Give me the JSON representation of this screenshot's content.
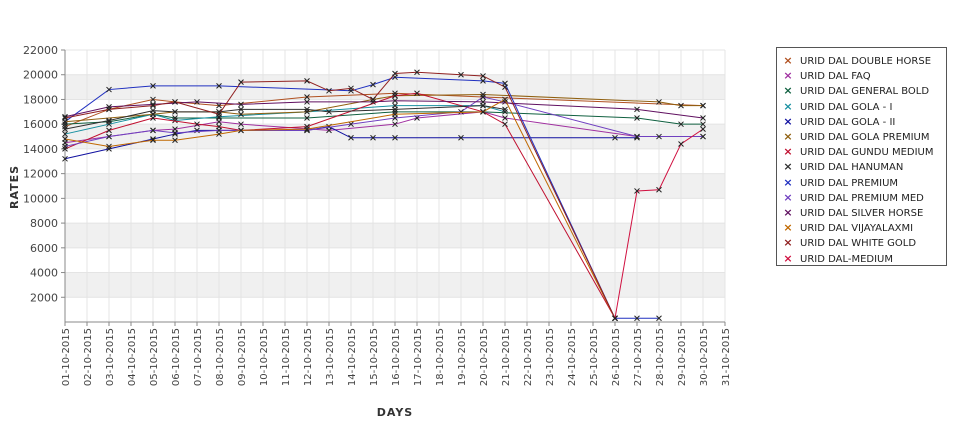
{
  "chart_data": {
    "type": "line",
    "title": "",
    "xlabel": "DAYS",
    "ylabel": "RATES",
    "ylim": [
      0,
      22000
    ],
    "yticks": [
      2000,
      4000,
      6000,
      8000,
      10000,
      12000,
      14000,
      16000,
      18000,
      20000,
      22000
    ],
    "x_ticks": [
      "01-10-2015",
      "02-10-2015",
      "03-10-2015",
      "04-10-2015",
      "05-10-2015",
      "06-10-2015",
      "07-10-2015",
      "08-10-2015",
      "09-10-2015",
      "10-10-2015",
      "11-10-2015",
      "12-10-2015",
      "13-10-2015",
      "14-10-2015",
      "15-10-2015",
      "16-10-2015",
      "17-10-2015",
      "18-10-2015",
      "19-10-2015",
      "20-10-2015",
      "21-10-2015",
      "22-10-2015",
      "23-10-2015",
      "24-10-2015",
      "25-10-2015",
      "26-10-2015",
      "27-10-2015",
      "28-10-2015",
      "29-10-2015",
      "30-10-2015",
      "31-10-2015"
    ],
    "grid": true,
    "legend_position": "right",
    "series": [
      {
        "name": "URID DAL DOUBLE HORSE",
        "color": "#b05020",
        "points": [
          [
            "01-10-2015",
            15800
          ],
          [
            "03-10-2015",
            17200
          ],
          [
            "05-10-2015",
            18000
          ],
          [
            "06-10-2015",
            17800
          ],
          [
            "08-10-2015",
            17500
          ],
          [
            "12-10-2015",
            18200
          ],
          [
            "16-10-2015",
            18500
          ],
          [
            "20-10-2015",
            18200
          ],
          [
            "30-10-2015",
            17500
          ]
        ]
      },
      {
        "name": "URID DAL FAQ",
        "color": "#a030a0",
        "points": [
          [
            "01-10-2015",
            14500
          ],
          [
            "03-10-2015",
            15000
          ],
          [
            "05-10-2015",
            15500
          ],
          [
            "06-10-2015",
            15600
          ],
          [
            "08-10-2015",
            16200
          ],
          [
            "09-10-2015",
            16000
          ],
          [
            "13-10-2015",
            15500
          ],
          [
            "16-10-2015",
            16000
          ],
          [
            "17-10-2015",
            16500
          ],
          [
            "20-10-2015",
            17000
          ],
          [
            "21-10-2015",
            16500
          ],
          [
            "27-10-2015",
            15000
          ],
          [
            "30-10-2015",
            15000
          ]
        ]
      },
      {
        "name": "URID DAL GENERAL BOLD",
        "color": "#106040",
        "points": [
          [
            "01-10-2015",
            16000
          ],
          [
            "03-10-2015",
            16200
          ],
          [
            "05-10-2015",
            16800
          ],
          [
            "06-10-2015",
            16500
          ],
          [
            "08-10-2015",
            16500
          ],
          [
            "12-10-2015",
            16500
          ],
          [
            "16-10-2015",
            17000
          ],
          [
            "20-10-2015",
            17000
          ],
          [
            "27-10-2015",
            16500
          ],
          [
            "29-10-2015",
            16000
          ],
          [
            "30-10-2015",
            16000
          ]
        ]
      },
      {
        "name": "URID DAL GOLA - I",
        "color": "#1890a0",
        "points": [
          [
            "01-10-2015",
            15200
          ],
          [
            "03-10-2015",
            16000
          ],
          [
            "05-10-2015",
            16800
          ],
          [
            "06-10-2015",
            16300
          ],
          [
            "08-10-2015",
            16600
          ],
          [
            "12-10-2015",
            17000
          ],
          [
            "16-10-2015",
            17500
          ],
          [
            "20-10-2015",
            17500
          ],
          [
            "21-10-2015",
            17000
          ]
        ]
      },
      {
        "name": "URID DAL GOLA - II",
        "color": "#1010a0",
        "points": [
          [
            "01-10-2015",
            13200
          ],
          [
            "03-10-2015",
            14000
          ],
          [
            "05-10-2015",
            14800
          ],
          [
            "06-10-2015",
            15200
          ],
          [
            "07-10-2015",
            15500
          ],
          [
            "12-10-2015",
            15500
          ],
          [
            "13-10-2015",
            15800
          ],
          [
            "14-10-2015",
            14900
          ],
          [
            "15-10-2015",
            14900
          ],
          [
            "16-10-2015",
            14900
          ],
          [
            "19-10-2015",
            14900
          ],
          [
            "26-10-2015",
            14900
          ],
          [
            "27-10-2015",
            14900
          ]
        ]
      },
      {
        "name": "URID DAL GOLA PREMIUM",
        "color": "#906010",
        "points": [
          [
            "01-10-2015",
            16200
          ],
          [
            "05-10-2015",
            16800
          ],
          [
            "06-10-2015",
            17000
          ],
          [
            "08-10-2015",
            17000
          ],
          [
            "09-10-2015",
            16800
          ],
          [
            "12-10-2015",
            17000
          ],
          [
            "15-10-2015",
            18000
          ],
          [
            "16-10-2015",
            18300
          ],
          [
            "20-10-2015",
            18400
          ],
          [
            "28-10-2015",
            17800
          ],
          [
            "29-10-2015",
            17500
          ],
          [
            "30-10-2015",
            17500
          ]
        ]
      },
      {
        "name": "URID DAL GUNDU MEDIUM",
        "color": "#c01030",
        "points": [
          [
            "01-10-2015",
            14000
          ],
          [
            "03-10-2015",
            15500
          ],
          [
            "05-10-2015",
            16500
          ],
          [
            "07-10-2015",
            16000
          ],
          [
            "08-10-2015",
            15800
          ],
          [
            "09-10-2015",
            15500
          ],
          [
            "12-10-2015",
            15800
          ],
          [
            "16-10-2015",
            18300
          ],
          [
            "17-10-2015",
            18500
          ],
          [
            "20-10-2015",
            17000
          ],
          [
            "21-10-2015",
            16000
          ],
          [
            "26-10-2015",
            300
          ]
        ]
      },
      {
        "name": "URID DAL HANUMAN",
        "color": "#303030",
        "points": [
          [
            "01-10-2015",
            15600
          ],
          [
            "03-10-2015",
            16300
          ],
          [
            "05-10-2015",
            17100
          ],
          [
            "06-10-2015",
            17000
          ],
          [
            "08-10-2015",
            17000
          ],
          [
            "09-10-2015",
            17200
          ],
          [
            "12-10-2015",
            17200
          ],
          [
            "13-10-2015",
            17000
          ],
          [
            "16-10-2015",
            17200
          ],
          [
            "20-10-2015",
            17500
          ],
          [
            "21-10-2015",
            17200
          ]
        ]
      },
      {
        "name": "URID DAL PREMIUM",
        "color": "#2030c0",
        "points": [
          [
            "01-10-2015",
            16200
          ],
          [
            "03-10-2015",
            18800
          ],
          [
            "05-10-2015",
            19100
          ],
          [
            "08-10-2015",
            19100
          ],
          [
            "14-10-2015",
            18700
          ],
          [
            "15-10-2015",
            19200
          ],
          [
            "16-10-2015",
            19800
          ],
          [
            "20-10-2015",
            19500
          ],
          [
            "21-10-2015",
            19300
          ],
          [
            "26-10-2015",
            300
          ],
          [
            "27-10-2015",
            300
          ],
          [
            "28-10-2015",
            300
          ]
        ]
      },
      {
        "name": "URID DAL PREMIUM MED",
        "color": "#7040c0",
        "points": [
          [
            "01-10-2015",
            14200
          ],
          [
            "03-10-2015",
            15000
          ],
          [
            "05-10-2015",
            15500
          ],
          [
            "06-10-2015",
            15300
          ],
          [
            "08-10-2015",
            15500
          ],
          [
            "12-10-2015",
            15500
          ],
          [
            "14-10-2015",
            16000
          ],
          [
            "16-10-2015",
            16500
          ],
          [
            "19-10-2015",
            17000
          ],
          [
            "20-10-2015",
            18200
          ],
          [
            "21-10-2015",
            17800
          ],
          [
            "27-10-2015",
            15000
          ],
          [
            "28-10-2015",
            15000
          ],
          [
            "30-10-2015",
            15000
          ]
        ]
      },
      {
        "name": "URID DAL SILVER HORSE",
        "color": "#601060",
        "points": [
          [
            "01-10-2015",
            16600
          ],
          [
            "03-10-2015",
            17400
          ],
          [
            "05-10-2015",
            17600
          ],
          [
            "07-10-2015",
            17800
          ],
          [
            "09-10-2015",
            17600
          ],
          [
            "12-10-2015",
            17800
          ],
          [
            "15-10-2015",
            17800
          ],
          [
            "16-10-2015",
            17900
          ],
          [
            "20-10-2015",
            17800
          ],
          [
            "27-10-2015",
            17200
          ],
          [
            "30-10-2015",
            16500
          ]
        ]
      },
      {
        "name": "URID DAL VIJAYALAXMI",
        "color": "#c06800",
        "points": [
          [
            "01-10-2015",
            14800
          ],
          [
            "03-10-2015",
            14200
          ],
          [
            "05-10-2015",
            14700
          ],
          [
            "06-10-2015",
            14700
          ],
          [
            "08-10-2015",
            15200
          ],
          [
            "09-10-2015",
            15500
          ],
          [
            "12-10-2015",
            15600
          ],
          [
            "16-10-2015",
            16800
          ],
          [
            "20-10-2015",
            17000
          ],
          [
            "21-10-2015",
            18000
          ],
          [
            "26-10-2015",
            300
          ]
        ]
      },
      {
        "name": "URID DAL WHITE GOLD",
        "color": "#902020",
        "points": [
          [
            "01-10-2015",
            16500
          ],
          [
            "03-10-2015",
            17200
          ],
          [
            "05-10-2015",
            17500
          ],
          [
            "06-10-2015",
            17800
          ],
          [
            "08-10-2015",
            16800
          ],
          [
            "09-10-2015",
            19400
          ],
          [
            "12-10-2015",
            19500
          ],
          [
            "13-10-2015",
            18700
          ],
          [
            "14-10-2015",
            18900
          ],
          [
            "15-10-2015",
            18000
          ],
          [
            "16-10-2015",
            20100
          ],
          [
            "17-10-2015",
            20200
          ],
          [
            "19-10-2015",
            20000
          ],
          [
            "20-10-2015",
            19900
          ],
          [
            "21-10-2015",
            19000
          ],
          [
            "26-10-2015",
            300
          ]
        ]
      },
      {
        "name": "URID DAL-MEDIUM",
        "color": "#d01040",
        "points": [
          [
            "26-10-2015",
            300
          ],
          [
            "27-10-2015",
            10600
          ],
          [
            "28-10-2015",
            10700
          ],
          [
            "29-10-2015",
            14400
          ],
          [
            "30-10-2015",
            15600
          ]
        ]
      }
    ]
  }
}
